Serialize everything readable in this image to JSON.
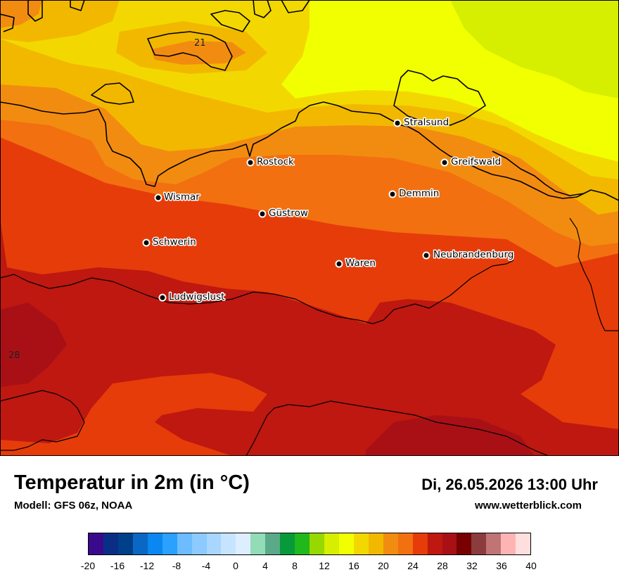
{
  "header": {
    "title": "Temperatur in 2m (in °C)",
    "model": "Modell: GFS 06z, NOAA",
    "datetime": "Di, 26.05.2026 13:00 Uhr",
    "site": "www.wetterblick.com"
  },
  "map": {
    "cities": [
      {
        "name": "Stralsund"
      },
      {
        "name": "Rostock"
      },
      {
        "name": "Greifswald"
      },
      {
        "name": "Wismar"
      },
      {
        "name": "Demmin"
      },
      {
        "name": "Güstrow"
      },
      {
        "name": "Schwerin"
      },
      {
        "name": "Neubrandenburg"
      },
      {
        "name": "Waren"
      },
      {
        "name": "Ludwigslust"
      }
    ],
    "contour_labels": [
      "21",
      "28"
    ]
  },
  "legend": {
    "ticks": [
      "-20",
      "-16",
      "-12",
      "-8",
      "-4",
      "0",
      "4",
      "8",
      "12",
      "16",
      "20",
      "24",
      "28",
      "32",
      "36",
      "40"
    ],
    "colors": [
      "#3a0a8c",
      "#0a2e86",
      "#003f8a",
      "#0a67c4",
      "#0a87f0",
      "#2aa0ff",
      "#6cbcff",
      "#8ccaff",
      "#a8d6ff",
      "#c6e4ff",
      "#ddeeff",
      "#92dcb8",
      "#5aaa8a",
      "#089a3a",
      "#20b81a",
      "#96d800",
      "#d6ee00",
      "#f2ff00",
      "#f2d800",
      "#f2b800",
      "#f28c10",
      "#f27010",
      "#e63c0a",
      "#be1810",
      "#a81016",
      "#780000",
      "#8c3c3c",
      "#c07474",
      "#ffb4b4",
      "#ffdede"
    ]
  }
}
